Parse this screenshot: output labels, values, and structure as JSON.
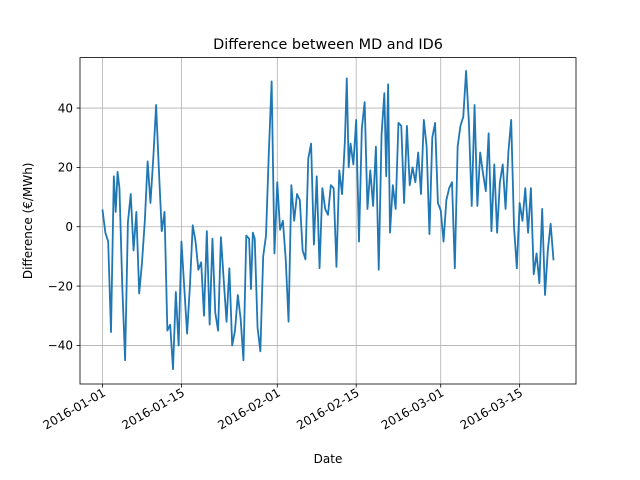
{
  "chart_data": {
    "type": "line",
    "title": "Difference between MD and ID6",
    "xlabel": "Date",
    "ylabel": "Difference (€/MWh)",
    "x_type": "date",
    "x_ticks": [
      "2016-01-01",
      "2016-01-15",
      "2016-02-01",
      "2016-02-15",
      "2016-03-01",
      "2016-03-15"
    ],
    "y_ticks": [
      -40,
      -20,
      0,
      20,
      40
    ],
    "xlim": [
      "2015-12-28",
      "2016-03-25"
    ],
    "ylim": [
      -53,
      57
    ],
    "grid": true,
    "colors": {
      "series": "#1f77b4",
      "grid": "#b0b0b0",
      "axis": "#000000"
    },
    "series": [
      {
        "name": "",
        "points": [
          [
            "2016-01-01",
            5.5
          ],
          [
            "2016-01-01",
            -2.0
          ],
          [
            "2016-01-02",
            -5.0
          ],
          [
            "2016-01-02",
            -35.5
          ],
          [
            "2016-01-03",
            17.0
          ],
          [
            "2016-01-03",
            5.0
          ],
          [
            "2016-01-03",
            18.5
          ],
          [
            "2016-01-04",
            13.0
          ],
          [
            "2016-01-04",
            -20.0
          ],
          [
            "2016-01-05",
            -45.0
          ],
          [
            "2016-01-05",
            1.5
          ],
          [
            "2016-01-06",
            11.0
          ],
          [
            "2016-01-06",
            -8.0
          ],
          [
            "2016-01-07",
            5.0
          ],
          [
            "2016-01-07",
            -22.5
          ],
          [
            "2016-01-08",
            -12.0
          ],
          [
            "2016-01-08",
            2.0
          ],
          [
            "2016-01-09",
            22.0
          ],
          [
            "2016-01-09",
            8.0
          ],
          [
            "2016-01-10",
            23.0
          ],
          [
            "2016-01-10",
            41.0
          ],
          [
            "2016-01-11",
            19.0
          ],
          [
            "2016-01-11",
            -1.5
          ],
          [
            "2016-01-12",
            5.0
          ],
          [
            "2016-01-12",
            -35.0
          ],
          [
            "2016-01-13",
            -33.0
          ],
          [
            "2016-01-13",
            -48.0
          ],
          [
            "2016-01-14",
            -22.0
          ],
          [
            "2016-01-14",
            -40.0
          ],
          [
            "2016-01-15",
            -5.0
          ],
          [
            "2016-01-16",
            -36.0
          ],
          [
            "2016-01-16",
            -20.0
          ],
          [
            "2016-01-17",
            0.5
          ],
          [
            "2016-01-17",
            -5.0
          ],
          [
            "2016-01-18",
            -14.5
          ],
          [
            "2016-01-18",
            -12.0
          ],
          [
            "2016-01-19",
            -30.0
          ],
          [
            "2016-01-19",
            -1.5
          ],
          [
            "2016-01-20",
            -33.0
          ],
          [
            "2016-01-20",
            -4.0
          ],
          [
            "2016-01-21",
            -29.0
          ],
          [
            "2016-01-21",
            -35.0
          ],
          [
            "2016-01-22",
            -3.5
          ],
          [
            "2016-01-22",
            -18.0
          ],
          [
            "2016-01-23",
            -32.0
          ],
          [
            "2016-01-23",
            -14.0
          ],
          [
            "2016-01-24",
            -40.0
          ],
          [
            "2016-01-24",
            -35.0
          ],
          [
            "2016-01-25",
            -23.0
          ],
          [
            "2016-01-25",
            -31.0
          ],
          [
            "2016-01-26",
            -45.0
          ],
          [
            "2016-01-26",
            -3.0
          ],
          [
            "2016-01-27",
            -4.0
          ],
          [
            "2016-01-27",
            -21.0
          ],
          [
            "2016-01-27",
            -2.0
          ],
          [
            "2016-01-28",
            -4.0
          ],
          [
            "2016-01-28",
            -34.0
          ],
          [
            "2016-01-29",
            -42.0
          ],
          [
            "2016-01-29",
            -10.0
          ],
          [
            "2016-01-30",
            -3.0
          ],
          [
            "2016-01-30",
            25.0
          ],
          [
            "2016-01-31",
            49.0
          ],
          [
            "2016-01-31",
            -9.0
          ],
          [
            "2016-02-01",
            15.0
          ],
          [
            "2016-02-01",
            -1.0
          ],
          [
            "2016-02-02",
            2.0
          ],
          [
            "2016-02-02",
            -11.0
          ],
          [
            "2016-02-03",
            -32.0
          ],
          [
            "2016-02-03",
            14.0
          ],
          [
            "2016-02-04",
            2.0
          ],
          [
            "2016-02-04",
            11.0
          ],
          [
            "2016-02-05",
            9.0
          ],
          [
            "2016-02-05",
            -8.0
          ],
          [
            "2016-02-06",
            -11.0
          ],
          [
            "2016-02-06",
            23.0
          ],
          [
            "2016-02-07",
            28.0
          ],
          [
            "2016-02-07",
            -6.0
          ],
          [
            "2016-02-08",
            17.0
          ],
          [
            "2016-02-08",
            -14.0
          ],
          [
            "2016-02-09",
            13.0
          ],
          [
            "2016-02-09",
            6.0
          ],
          [
            "2016-02-10",
            4.0
          ],
          [
            "2016-02-10",
            14.0
          ],
          [
            "2016-02-11",
            13.0
          ],
          [
            "2016-02-11",
            -13.5
          ],
          [
            "2016-02-12",
            19.0
          ],
          [
            "2016-02-12",
            11.0
          ],
          [
            "2016-02-13",
            29.0
          ],
          [
            "2016-02-13",
            50.0
          ],
          [
            "2016-02-13",
            20.0
          ],
          [
            "2016-02-14",
            28.0
          ],
          [
            "2016-02-14",
            21.0
          ],
          [
            "2016-02-15",
            36.0
          ],
          [
            "2016-02-15",
            -5.0
          ],
          [
            "2016-02-16",
            33.0
          ],
          [
            "2016-02-16",
            42.0
          ],
          [
            "2016-02-17",
            6.0
          ],
          [
            "2016-02-17",
            19.0
          ],
          [
            "2016-02-18",
            7.0
          ],
          [
            "2016-02-18",
            27.0
          ],
          [
            "2016-02-19",
            -14.5
          ],
          [
            "2016-02-19",
            31.0
          ],
          [
            "2016-02-20",
            45.0
          ],
          [
            "2016-02-20",
            17.0
          ],
          [
            "2016-02-20",
            48.0
          ],
          [
            "2016-02-21",
            -2.0
          ],
          [
            "2016-02-21",
            14.0
          ],
          [
            "2016-02-22",
            6.0
          ],
          [
            "2016-02-22",
            35.0
          ],
          [
            "2016-02-23",
            34.0
          ],
          [
            "2016-02-23",
            8.0
          ],
          [
            "2016-02-24",
            34.0
          ],
          [
            "2016-02-24",
            14.0
          ],
          [
            "2016-02-25",
            20.0
          ],
          [
            "2016-02-25",
            15.0
          ],
          [
            "2016-02-26",
            25.0
          ],
          [
            "2016-02-26",
            11.0
          ],
          [
            "2016-02-27",
            36.0
          ],
          [
            "2016-02-27",
            27.0
          ],
          [
            "2016-02-28",
            -2.5
          ],
          [
            "2016-02-28",
            30.0
          ],
          [
            "2016-02-29",
            35.0
          ],
          [
            "2016-02-29",
            8.0
          ],
          [
            "2016-03-01",
            5.5
          ],
          [
            "2016-03-01",
            -5.0
          ],
          [
            "2016-03-02",
            9.0
          ],
          [
            "2016-03-02",
            13.0
          ],
          [
            "2016-03-03",
            15.0
          ],
          [
            "2016-03-03",
            -14.0
          ],
          [
            "2016-03-04",
            27.0
          ],
          [
            "2016-03-04",
            34.0
          ],
          [
            "2016-03-05",
            37.0
          ],
          [
            "2016-03-05",
            52.5
          ],
          [
            "2016-03-06",
            35.0
          ],
          [
            "2016-03-06",
            7.0
          ],
          [
            "2016-03-07",
            41.0
          ],
          [
            "2016-03-07",
            7.0
          ],
          [
            "2016-03-08",
            25.0
          ],
          [
            "2016-03-08",
            18.0
          ],
          [
            "2016-03-09",
            12.0
          ],
          [
            "2016-03-09",
            31.5
          ],
          [
            "2016-03-10",
            -1.5
          ],
          [
            "2016-03-10",
            21.0
          ],
          [
            "2016-03-11",
            -2.0
          ],
          [
            "2016-03-11",
            15.0
          ],
          [
            "2016-03-12",
            21.0
          ],
          [
            "2016-03-12",
            6.0
          ],
          [
            "2016-03-13",
            25.0
          ],
          [
            "2016-03-13",
            36.0
          ],
          [
            "2016-03-14",
            0.0
          ],
          [
            "2016-03-14",
            -14.0
          ],
          [
            "2016-03-15",
            8.0
          ],
          [
            "2016-03-15",
            2.0
          ],
          [
            "2016-03-16",
            13.0
          ],
          [
            "2016-03-16",
            -2.0
          ],
          [
            "2016-03-17",
            13.0
          ],
          [
            "2016-03-17",
            -16.0
          ],
          [
            "2016-03-18",
            -9.0
          ],
          [
            "2016-03-18",
            -19.0
          ],
          [
            "2016-03-19",
            6.0
          ],
          [
            "2016-03-19",
            -23.0
          ],
          [
            "2016-03-20",
            -8.0
          ],
          [
            "2016-03-20",
            1.0
          ],
          [
            "2016-03-21",
            -11.0
          ]
        ]
      }
    ]
  }
}
